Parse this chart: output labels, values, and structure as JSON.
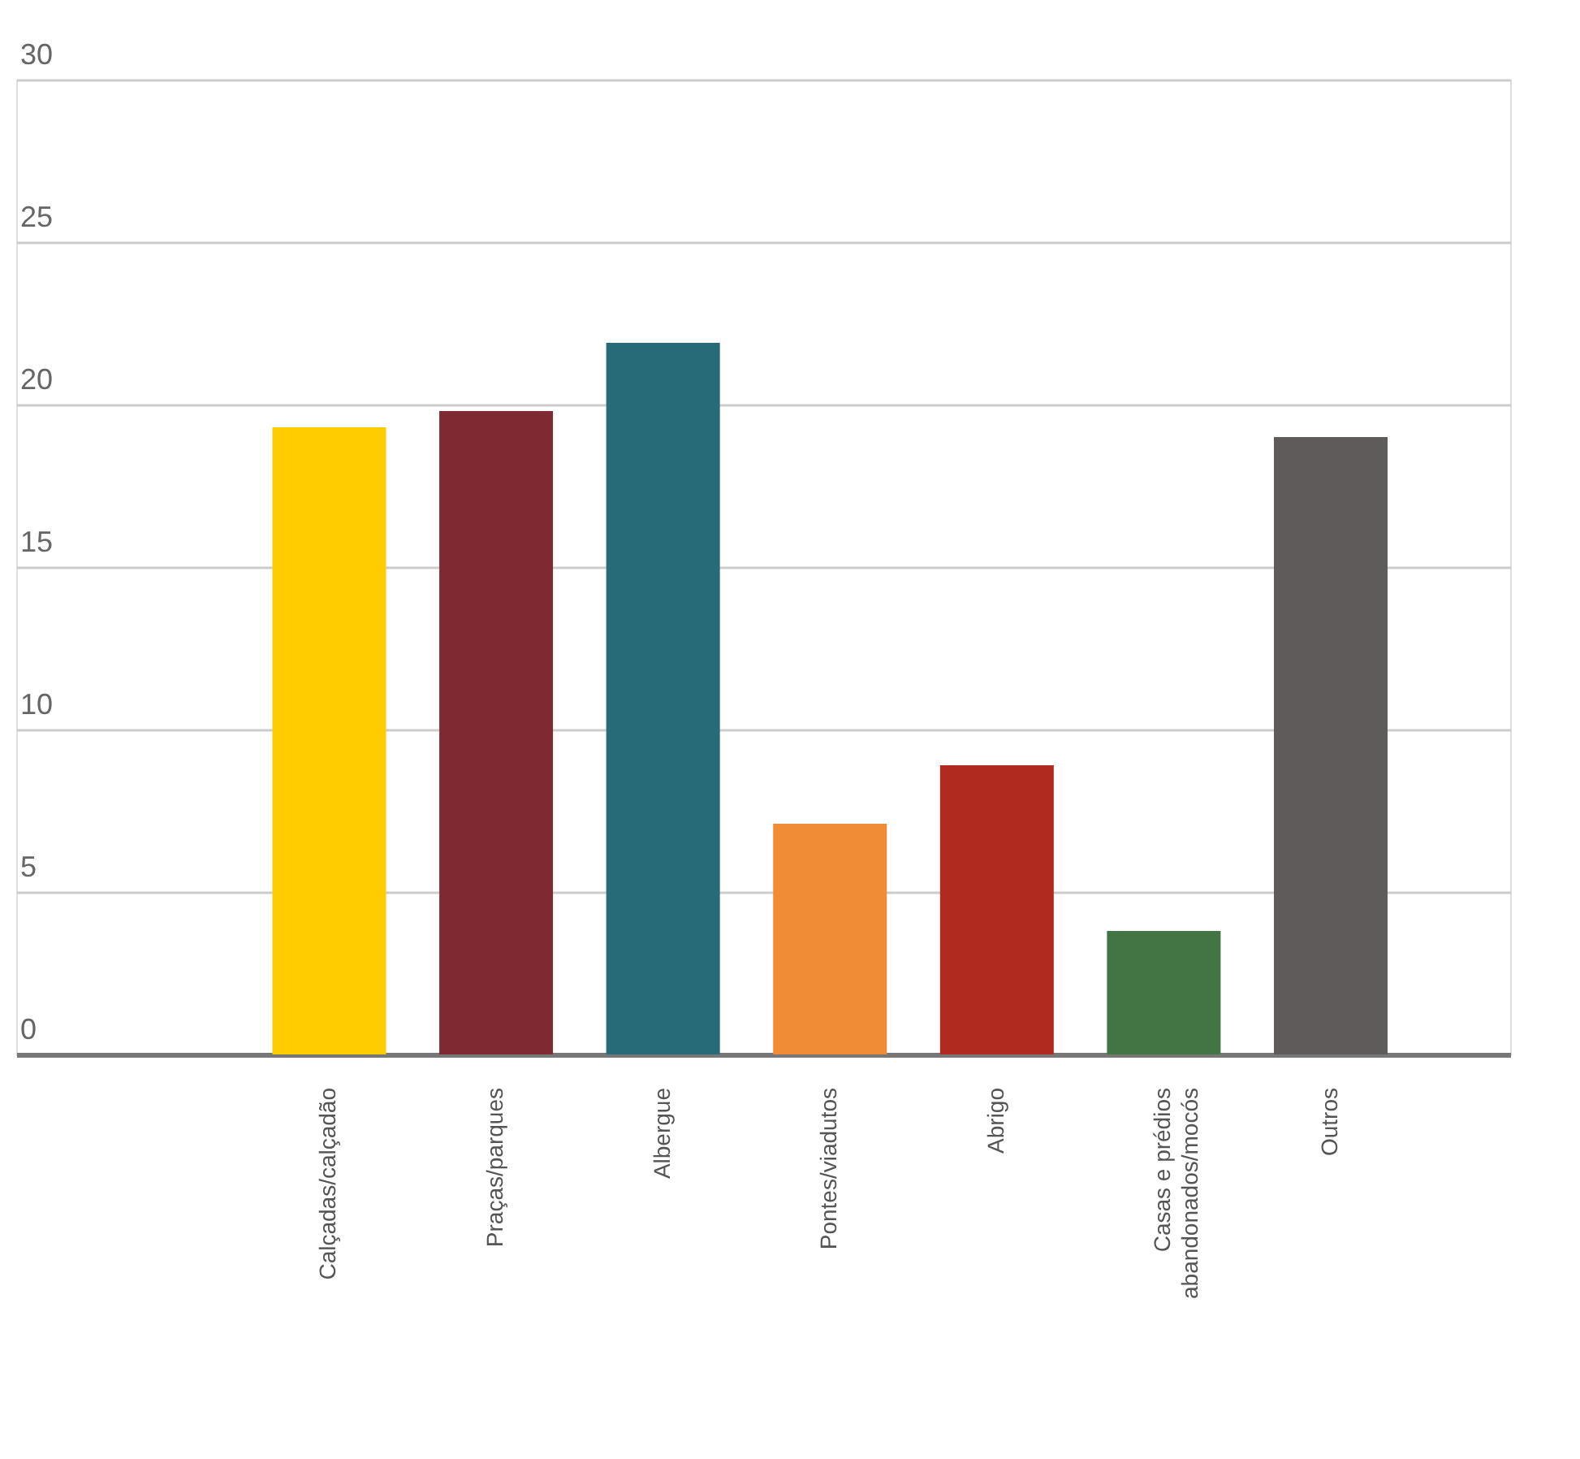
{
  "chart_data": {
    "type": "bar",
    "categories": [
      "Calçadas/calçadão",
      "Praças/parques",
      "Albergue",
      "Pontes/viadutos",
      "Abrigo",
      "Casas e prédios abandonados/mocós",
      "Outros"
    ],
    "values": [
      19.3,
      19.8,
      21.9,
      7.1,
      8.9,
      3.8,
      19.0
    ],
    "colors": [
      "#ffcc00",
      "#7f2a32",
      "#276a78",
      "#f08c35",
      "#b02a20",
      "#437444",
      "#5f5b5a"
    ],
    "ylim": [
      0,
      30
    ],
    "yticks": [
      0,
      5,
      10,
      15,
      20,
      25,
      30
    ],
    "grid": "y",
    "legend": false
  }
}
